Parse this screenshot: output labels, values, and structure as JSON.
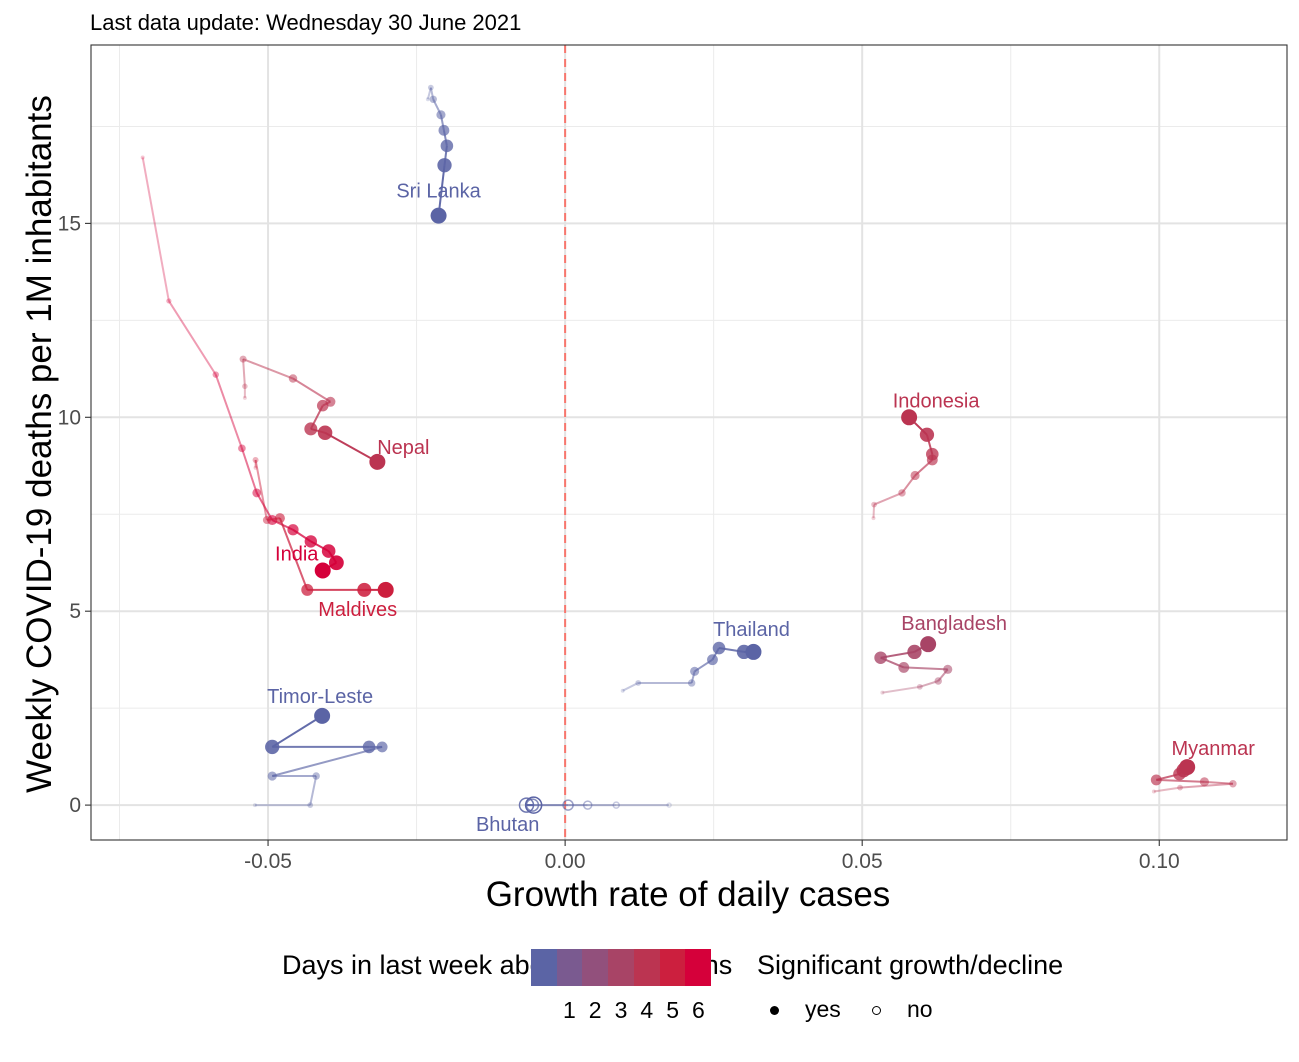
{
  "subtitle": "Last data update: Wednesday 30 June 2021",
  "chart_data": {
    "type": "scatter",
    "xlabel": "Growth rate of daily cases",
    "ylabel": "Weekly COVID-19 deaths per 1M inhabitants",
    "xlim": [
      -0.0798,
      0.1215
    ],
    "ylim": [
      -0.9,
      19.6
    ],
    "x_ticks": [
      -0.05,
      0.0,
      0.05,
      0.1
    ],
    "x_tick_labels": [
      "-0.05",
      "0.00",
      "0.05",
      "0.10"
    ],
    "y_ticks": [
      0,
      5,
      10,
      15
    ],
    "y_tick_labels": [
      "0",
      "5",
      "10",
      "15"
    ],
    "grid": true,
    "reference_line": {
      "x": 0.0,
      "style": "dashed",
      "color": "#f8766d"
    },
    "legend_position": "bottom",
    "color_legend": {
      "title": "Days in last week above expectations",
      "ticks": [
        1,
        2,
        3,
        4,
        5,
        6
      ],
      "colors": [
        "#5b64a5",
        "#7a5a90",
        "#92507c",
        "#a84466",
        "#bb3451",
        "#cc1f3e",
        "#d5003a"
      ]
    },
    "shape_legend": {
      "title": "Significant growth/decline",
      "items": [
        {
          "label": "yes",
          "shape": "filled"
        },
        {
          "label": "no",
          "shape": "open"
        }
      ]
    },
    "series": [
      {
        "name": "Sri Lanka",
        "days": 0,
        "significant": true,
        "x": [
          -0.0231,
          -0.0226,
          -0.0222,
          -0.0209,
          -0.0204,
          -0.0199,
          -0.0203,
          -0.0213
        ],
        "y": [
          18.2,
          18.5,
          18.2,
          17.8,
          17.4,
          17.0,
          16.5,
          15.2
        ]
      },
      {
        "name": "Nepal",
        "days": 4,
        "significant": true,
        "x": [
          -0.0539,
          -0.0539,
          -0.0542,
          -0.0458,
          -0.0395,
          -0.0408,
          -0.0428,
          -0.0404,
          -0.0316
        ],
        "y": [
          10.5,
          10.8,
          11.5,
          11.0,
          10.4,
          10.3,
          9.7,
          9.6,
          8.85
        ]
      },
      {
        "name": "India",
        "days": 6,
        "significant": true,
        "x": [
          -0.0711,
          -0.0667,
          -0.0588,
          -0.0544,
          -0.0519,
          -0.0493,
          -0.0458,
          -0.0428,
          -0.0398,
          -0.0385,
          -0.0408
        ],
        "y": [
          16.7,
          13.0,
          11.1,
          9.2,
          8.05,
          7.35,
          7.1,
          6.8,
          6.55,
          6.25,
          6.05
        ]
      },
      {
        "name": "Maldives",
        "days": 5,
        "significant": true,
        "x": [
          -0.0521,
          -0.0521,
          -0.0502,
          -0.048,
          -0.0434,
          -0.0338,
          -0.0302
        ],
        "y": [
          8.7,
          8.9,
          7.35,
          7.4,
          5.55,
          5.55,
          5.55
        ]
      },
      {
        "name": "Indonesia",
        "days": 4,
        "significant": true,
        "x": [
          0.0519,
          0.052,
          0.0567,
          0.0589,
          0.0618,
          0.0618,
          0.0609,
          0.0579
        ],
        "y": [
          7.4,
          7.75,
          8.05,
          8.5,
          8.9,
          9.05,
          9.55,
          10.0
        ]
      },
      {
        "name": "Thailand",
        "days": 0,
        "significant": true,
        "x": [
          0.0097,
          0.0123,
          0.0213,
          0.0218,
          0.0248,
          0.0259,
          0.0301,
          0.0317
        ],
        "y": [
          2.95,
          3.15,
          3.15,
          3.45,
          3.75,
          4.05,
          3.95,
          3.95
        ]
      },
      {
        "name": "Bangladesh",
        "days": 3,
        "significant": true,
        "x": [
          0.0534,
          0.0597,
          0.0628,
          0.0644,
          0.057,
          0.0531,
          0.0588,
          0.0611
        ],
        "y": [
          2.9,
          3.05,
          3.2,
          3.5,
          3.55,
          3.8,
          3.95,
          4.15
        ]
      },
      {
        "name": "Myanmar",
        "days": 4,
        "significant": true,
        "x": [
          0.0991,
          0.1035,
          0.1124,
          0.1076,
          0.0995,
          0.1034,
          0.1041,
          0.1047
        ],
        "y": [
          0.35,
          0.45,
          0.55,
          0.6,
          0.65,
          0.8,
          0.9,
          0.98
        ]
      },
      {
        "name": "Timor-Leste",
        "days": 0,
        "significant": true,
        "x": [
          -0.0522,
          -0.0429,
          -0.0419,
          -0.0493,
          -0.0308,
          -0.033,
          -0.0493,
          -0.0409
        ],
        "y": [
          0.0,
          0.0,
          0.75,
          0.75,
          1.5,
          1.5,
          1.5,
          2.3
        ]
      },
      {
        "name": "Bhutan",
        "days": 0,
        "significant": false,
        "x": [
          0.0175,
          0.0086,
          0.0038,
          0.0005,
          -0.0055,
          -0.0065,
          -0.0053
        ],
        "y": [
          0.0,
          0.0,
          0.0,
          0.0,
          0.0,
          0.0,
          0.0
        ]
      }
    ]
  }
}
